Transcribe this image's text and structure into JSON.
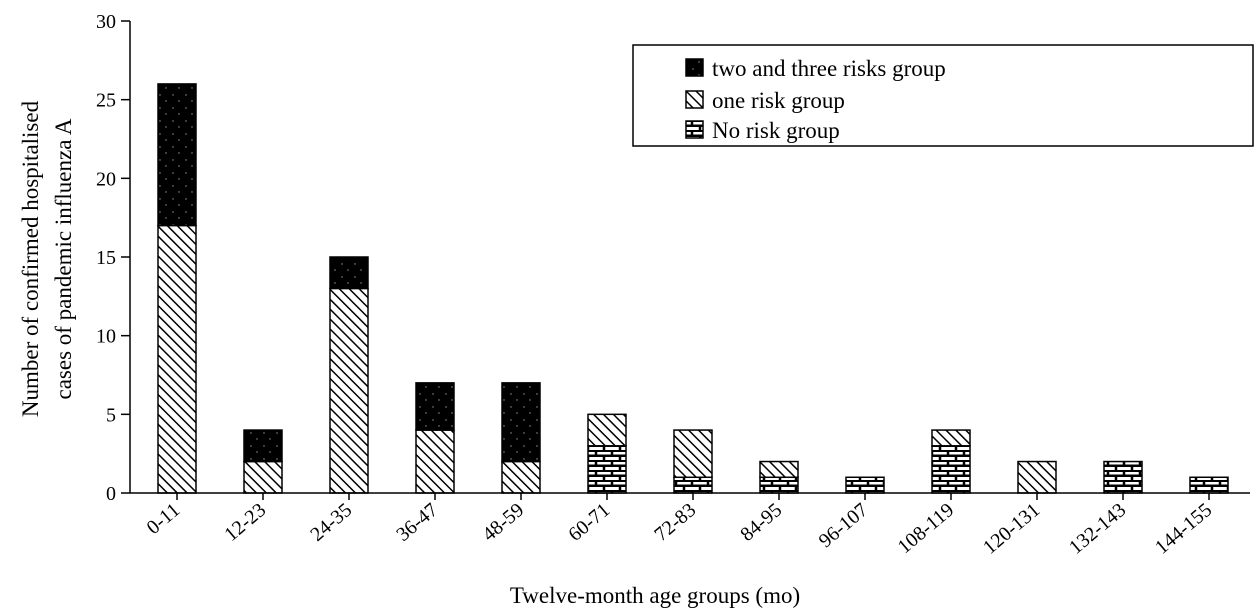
{
  "chart_data": {
    "type": "bar",
    "stacked": true,
    "title": "",
    "xlabel": "Twelve-month age groups (mo)",
    "ylabel_lines": [
      "Number of confirmed hospitalised",
      "cases of  pandemic influenza  A"
    ],
    "ylim": [
      0,
      30
    ],
    "yticks": [
      "0",
      "5",
      "10",
      "15",
      "20",
      "25",
      "30"
    ],
    "grid": false,
    "legend_position": "top-right",
    "categories": [
      "0-11",
      "12-23",
      "24-35",
      "36-47",
      "48-59",
      "60-71",
      "72-83",
      "84-95",
      "96-107",
      "108-119",
      "120-131",
      "132-143",
      "144-155"
    ],
    "series": [
      {
        "name": "No risk group",
        "pattern": "brick",
        "values": [
          0,
          0,
          0,
          0,
          0,
          3,
          1,
          1,
          1,
          3,
          0,
          2,
          1
        ]
      },
      {
        "name": "one risk group",
        "pattern": "hatch",
        "values": [
          17,
          2,
          13,
          4,
          2,
          2,
          3,
          1,
          0,
          1,
          2,
          0,
          0
        ]
      },
      {
        "name": "two and three risks group",
        "pattern": "dotted-black",
        "values": [
          9,
          2,
          2,
          3,
          5,
          0,
          0,
          0,
          0,
          0,
          0,
          0,
          0
        ]
      }
    ],
    "legend_order": [
      "two and three risks group",
      "one risk group",
      "No risk group"
    ]
  }
}
